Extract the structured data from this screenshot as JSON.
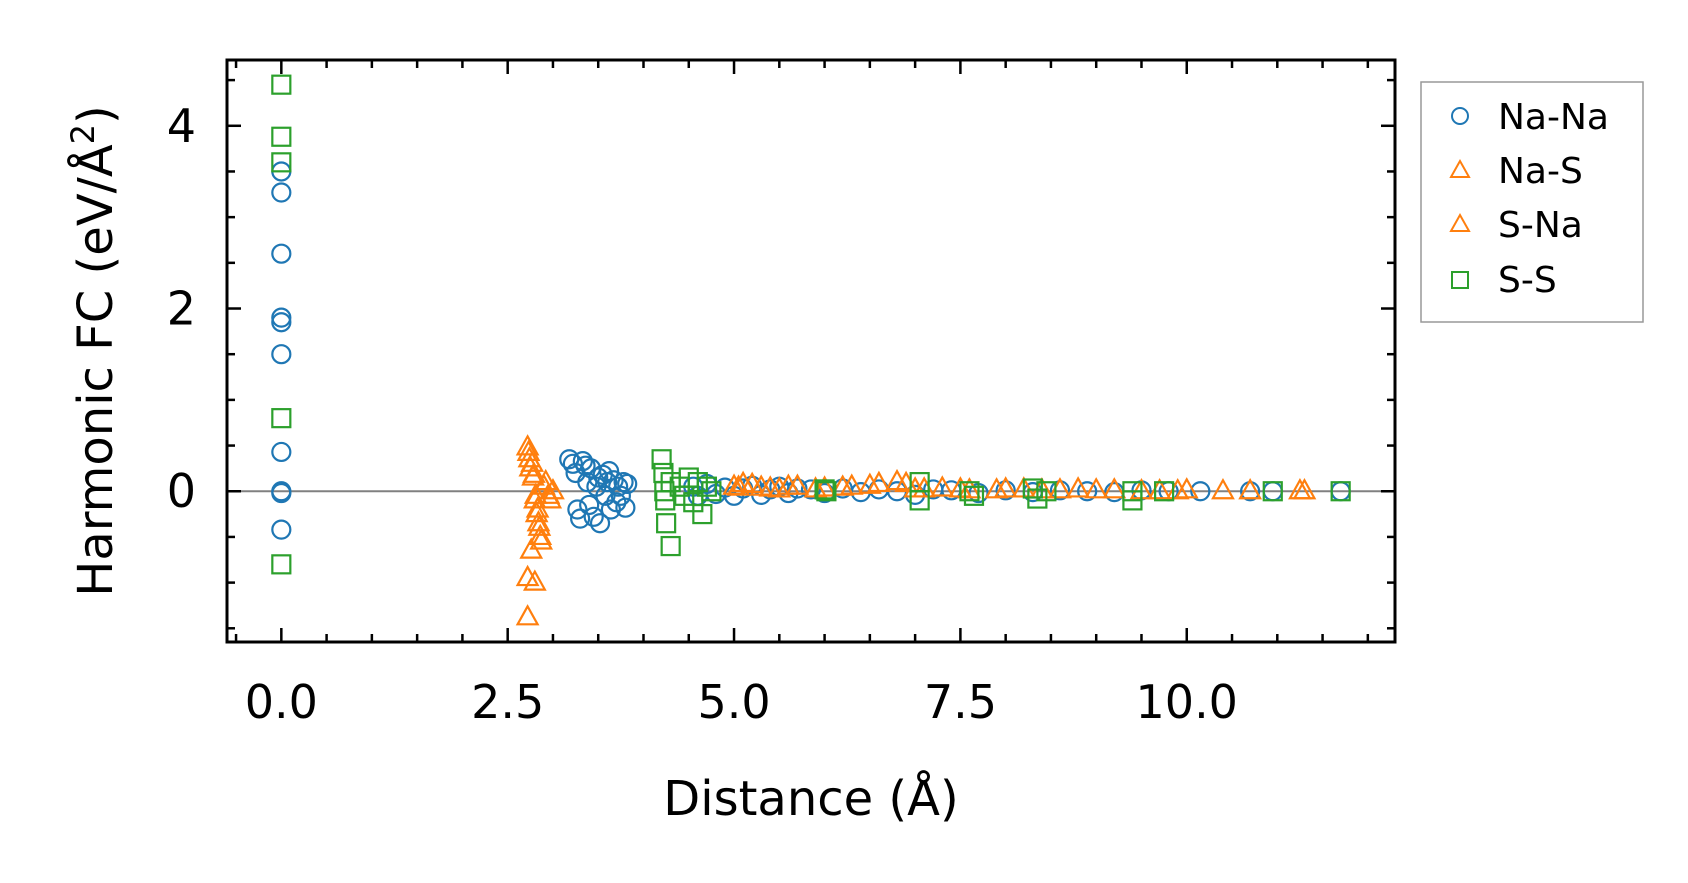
{
  "chart_data": {
    "type": "scatter",
    "title": "",
    "xlabel": "Distance (Å)",
    "ylabel_main": "Harmonic FC (eV/Å",
    "ylabel_sup": "2",
    "ylabel_close": ")",
    "xlim": [
      -0.6,
      12.3
    ],
    "ylim": [
      -1.65,
      4.72
    ],
    "x_ticks": [
      0.0,
      2.5,
      5.0,
      7.5,
      10.0
    ],
    "x_tick_labels": [
      "0.0",
      "2.5",
      "5.0",
      "7.5",
      "10.0"
    ],
    "y_ticks": [
      0,
      2,
      4
    ],
    "y_tick_labels": [
      "0",
      "2",
      "4"
    ],
    "zero_line": 0,
    "grid": false,
    "legend_position": "outside-right",
    "series": [
      {
        "name": "Na-Na",
        "marker": "circle",
        "color": "#1f77b4",
        "points": [
          [
            0,
            3.5
          ],
          [
            0,
            3.27
          ],
          [
            0,
            2.6
          ],
          [
            0,
            1.9
          ],
          [
            0,
            1.85
          ],
          [
            0,
            1.5
          ],
          [
            0,
            0.43
          ],
          [
            0,
            0.0
          ],
          [
            0,
            -0.02
          ],
          [
            0,
            -0.42
          ],
          [
            3.18,
            0.35
          ],
          [
            3.22,
            0.3
          ],
          [
            3.25,
            0.2
          ],
          [
            3.27,
            -0.2
          ],
          [
            3.3,
            -0.3
          ],
          [
            3.33,
            0.33
          ],
          [
            3.36,
            0.28
          ],
          [
            3.38,
            0.1
          ],
          [
            3.4,
            -0.15
          ],
          [
            3.42,
            0.25
          ],
          [
            3.45,
            -0.28
          ],
          [
            3.48,
            0.05
          ],
          [
            3.5,
            0.15
          ],
          [
            3.52,
            -0.35
          ],
          [
            3.55,
            0.18
          ],
          [
            3.58,
            -0.05
          ],
          [
            3.6,
            0.1
          ],
          [
            3.62,
            0.22
          ],
          [
            3.64,
            -0.2
          ],
          [
            3.67,
            0.12
          ],
          [
            3.7,
            -0.12
          ],
          [
            3.72,
            0.05
          ],
          [
            3.75,
            -0.05
          ],
          [
            3.78,
            0.1
          ],
          [
            3.8,
            -0.18
          ],
          [
            3.82,
            0.08
          ],
          [
            4.55,
            0.05
          ],
          [
            4.6,
            -0.05
          ],
          [
            4.7,
            0.08
          ],
          [
            4.8,
            -0.03
          ],
          [
            4.9,
            0.04
          ],
          [
            5.0,
            -0.05
          ],
          [
            5.1,
            0.03
          ],
          [
            5.2,
            0.06
          ],
          [
            5.3,
            -0.04
          ],
          [
            5.4,
            0.02
          ],
          [
            5.5,
            0.05
          ],
          [
            5.6,
            -0.02
          ],
          [
            5.7,
            0.03
          ],
          [
            5.85,
            0.02
          ],
          [
            6.0,
            -0.02
          ],
          [
            6.2,
            0.03
          ],
          [
            6.4,
            -0.01
          ],
          [
            6.6,
            0.02
          ],
          [
            6.8,
            0.0
          ],
          [
            7.0,
            -0.04
          ],
          [
            7.2,
            0.02
          ],
          [
            7.4,
            0.01
          ],
          [
            7.7,
            -0.02
          ],
          [
            8.0,
            0.01
          ],
          [
            8.3,
            -0.01
          ],
          [
            8.6,
            0.01
          ],
          [
            8.9,
            0.0
          ],
          [
            9.2,
            -0.01
          ],
          [
            9.5,
            0.01
          ],
          [
            9.8,
            0.0
          ],
          [
            10.15,
            0.0
          ],
          [
            10.7,
            0.0
          ],
          [
            10.95,
            0.0
          ],
          [
            11.7,
            0.0
          ]
        ]
      },
      {
        "name": "Na-S",
        "marker": "triangle",
        "color": "#ff7f0e",
        "points": [
          [
            2.72,
            0.48
          ],
          [
            2.74,
            0.35
          ],
          [
            2.75,
            0.25
          ],
          [
            2.78,
            0.15
          ],
          [
            2.8,
            -0.1
          ],
          [
            2.82,
            -0.25
          ],
          [
            2.84,
            -0.35
          ],
          [
            2.86,
            -0.5
          ],
          [
            2.72,
            -0.95
          ],
          [
            2.8,
            -1.0
          ],
          [
            2.72,
            -1.38
          ],
          [
            2.9,
            0.05
          ],
          [
            2.95,
            -0.05
          ],
          [
            3.0,
            0.0
          ],
          [
            5.0,
            0.05
          ],
          [
            5.1,
            0.08
          ],
          [
            5.3,
            0.04
          ],
          [
            5.5,
            0.02
          ],
          [
            5.7,
            0.05
          ],
          [
            6.0,
            0.03
          ],
          [
            6.3,
            0.05
          ],
          [
            6.6,
            0.08
          ],
          [
            6.8,
            0.1
          ],
          [
            7.0,
            0.02
          ],
          [
            7.3,
            0.03
          ],
          [
            7.6,
            0.01
          ],
          [
            8.0,
            0.02
          ],
          [
            8.4,
            0.01
          ],
          [
            8.8,
            0.02
          ],
          [
            9.2,
            0.01
          ],
          [
            9.7,
            0.0
          ],
          [
            10.0,
            0.01
          ],
          [
            10.4,
            0.0
          ],
          [
            11.3,
            0.0
          ]
        ]
      },
      {
        "name": "S-Na",
        "marker": "triangle",
        "color": "#ff7f0e",
        "points": [
          [
            2.73,
            0.42
          ],
          [
            2.77,
            0.3
          ],
          [
            2.79,
            0.18
          ],
          [
            2.81,
            -0.05
          ],
          [
            2.83,
            -0.2
          ],
          [
            2.85,
            -0.4
          ],
          [
            2.87,
            -0.55
          ],
          [
            2.76,
            -0.65
          ],
          [
            2.92,
            0.1
          ],
          [
            2.97,
            -0.1
          ],
          [
            5.05,
            0.04
          ],
          [
            5.2,
            0.07
          ],
          [
            5.4,
            0.03
          ],
          [
            5.6,
            0.05
          ],
          [
            5.9,
            0.02
          ],
          [
            6.2,
            0.04
          ],
          [
            6.5,
            0.06
          ],
          [
            6.9,
            0.08
          ],
          [
            7.1,
            0.02
          ],
          [
            7.5,
            0.02
          ],
          [
            7.9,
            0.01
          ],
          [
            8.2,
            0.02
          ],
          [
            8.6,
            0.01
          ],
          [
            9.0,
            0.01
          ],
          [
            9.5,
            0.0
          ],
          [
            9.9,
            0.0
          ],
          [
            10.7,
            0.0
          ],
          [
            11.25,
            0.0
          ]
        ]
      },
      {
        "name": "S-S",
        "marker": "square",
        "color": "#2ca02c",
        "points": [
          [
            0,
            4.45
          ],
          [
            0,
            3.88
          ],
          [
            0,
            3.6
          ],
          [
            0,
            0.8
          ],
          [
            0,
            -0.8
          ],
          [
            4.2,
            0.35
          ],
          [
            4.22,
            0.2
          ],
          [
            4.23,
            0.0
          ],
          [
            4.24,
            -0.1
          ],
          [
            4.25,
            -0.35
          ],
          [
            4.3,
            0.1
          ],
          [
            4.3,
            -0.6
          ],
          [
            4.4,
            0.05
          ],
          [
            4.45,
            -0.05
          ],
          [
            4.5,
            0.15
          ],
          [
            4.55,
            -0.12
          ],
          [
            4.6,
            0.1
          ],
          [
            4.65,
            -0.25
          ],
          [
            4.7,
            0.05
          ],
          [
            4.75,
            0.0
          ],
          [
            6.0,
            0.02
          ],
          [
            6.02,
            0.0
          ],
          [
            7.05,
            0.1
          ],
          [
            7.05,
            -0.1
          ],
          [
            7.6,
            0.0
          ],
          [
            7.65,
            -0.05
          ],
          [
            8.3,
            0.03
          ],
          [
            8.35,
            -0.08
          ],
          [
            8.45,
            0.0
          ],
          [
            9.4,
            0.0
          ],
          [
            9.4,
            -0.1
          ],
          [
            9.75,
            0.0
          ],
          [
            10.95,
            0.0
          ],
          [
            11.7,
            0.0
          ]
        ]
      }
    ],
    "colors": {
      "axis": "#000000",
      "zero_line": "#808080",
      "legend_border": "#999999"
    }
  }
}
